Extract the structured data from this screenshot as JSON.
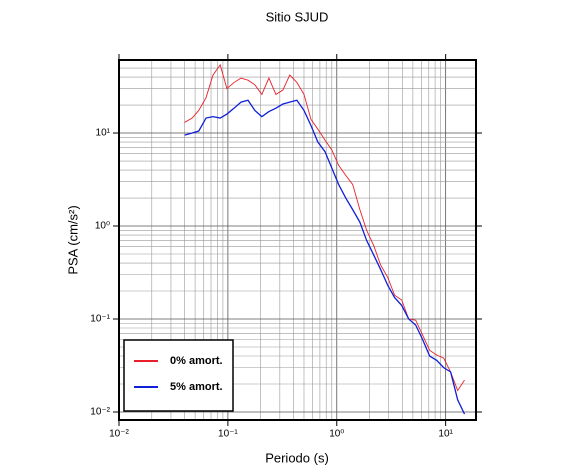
{
  "chart_data": {
    "type": "line",
    "title": "Sitio SJUD",
    "x_label": "Periodo (s)",
    "y_label": "PSA (cm/s²)",
    "xscale": "log",
    "yscale": "log",
    "grid": true,
    "legend": "lower left",
    "xlim": [
      0.01,
      19
    ],
    "ylim": [
      0.0082,
      61
    ],
    "xticks": [
      {
        "value": 0.01,
        "label": "10⁻²"
      },
      {
        "value": 0.1,
        "label": "10⁻¹"
      },
      {
        "value": 1,
        "label": "10⁰"
      },
      {
        "value": 10,
        "label": "10¹"
      }
    ],
    "yticks": [
      {
        "value": 0.01,
        "label": "10⁻²"
      },
      {
        "value": 0.1,
        "label": "10⁻¹"
      },
      {
        "value": 1,
        "label": "10⁰"
      },
      {
        "value": 10,
        "label": "10¹"
      }
    ],
    "x": [
      0.04,
      0.047,
      0.054,
      0.063,
      0.073,
      0.085,
      0.098,
      0.114,
      0.132,
      0.153,
      0.177,
      0.205,
      0.238,
      0.276,
      0.32,
      0.37,
      0.43,
      0.5,
      0.58,
      0.67,
      0.78,
      0.9,
      1.04,
      1.21,
      1.4,
      1.63,
      1.88,
      2.18,
      2.53,
      2.94,
      3.4,
      3.95,
      4.58,
      5.31,
      6.15,
      7.13,
      8.27,
      9.59,
      11.1,
      12.9,
      14.9
    ],
    "series": [
      {
        "name": "0% amort.",
        "color": "#e8202a",
        "values": [
          13,
          14.5,
          17.5,
          24,
          42,
          54,
          30,
          35,
          39,
          37,
          33,
          26,
          39,
          26,
          29,
          42,
          35,
          26,
          14,
          11,
          8.4,
          6.6,
          4.5,
          3.5,
          2.8,
          1.5,
          0.9,
          0.62,
          0.38,
          0.28,
          0.18,
          0.16,
          0.1,
          0.097,
          0.067,
          0.046,
          0.041,
          0.038,
          0.027,
          0.017,
          0.022
        ]
      },
      {
        "name": "5% amort.",
        "color": "#1020d8",
        "values": [
          9.5,
          10,
          10.5,
          14.5,
          15,
          14.5,
          16,
          18.5,
          21.5,
          22.5,
          17.5,
          15,
          17,
          18.5,
          20.5,
          21.5,
          22.5,
          17.5,
          12,
          8,
          6.3,
          4.2,
          2.8,
          2.0,
          1.5,
          1.1,
          0.7,
          0.49,
          0.34,
          0.23,
          0.17,
          0.14,
          0.1,
          0.086,
          0.06,
          0.04,
          0.036,
          0.03,
          0.027,
          0.0135,
          0.0095
        ]
      }
    ]
  }
}
